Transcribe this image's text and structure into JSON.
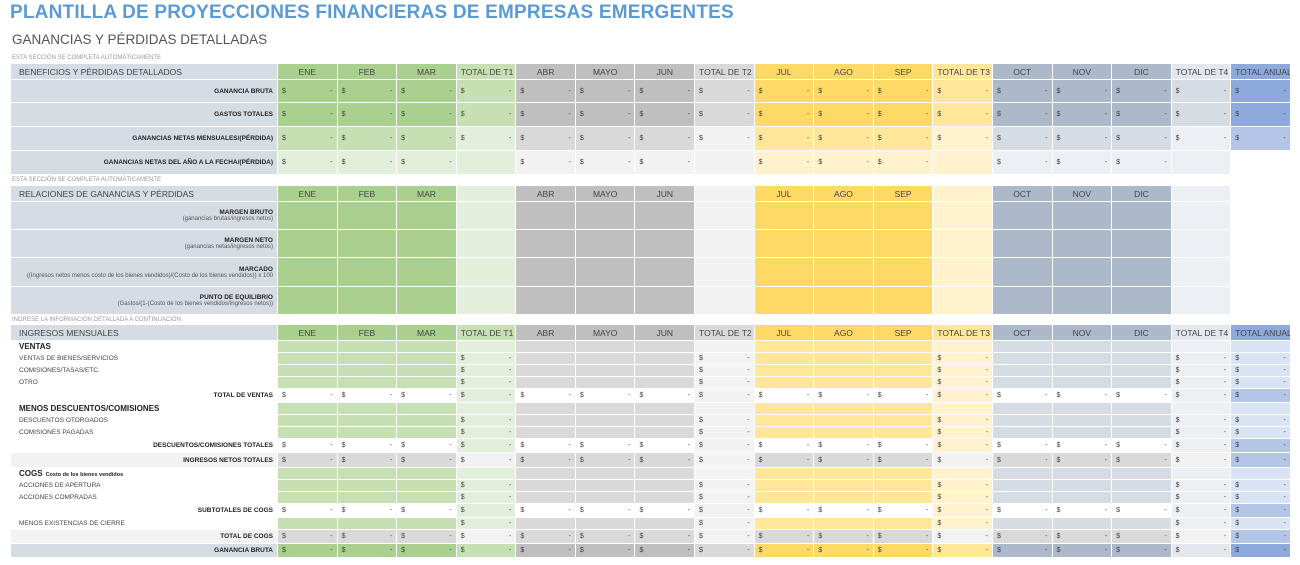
{
  "title": "PLANTILLA DE PROYECCIONES FINANCIERAS DE EMPRESAS EMERGENTES",
  "subtitle": "GANANCIAS Y PÉRDIDAS DETALLADAS",
  "currency": "$",
  "zero": "-",
  "columns": [
    "ENE",
    "FEB",
    "MAR",
    "TOTAL DE T1",
    "ABR",
    "MAYO",
    "JUN",
    "TOTAL DE T2",
    "JUL",
    "AGO",
    "SEP",
    "TOTAL DE T3",
    "OCT",
    "NOV",
    "DIC",
    "TOTAL DE T4",
    "TOTAL ANUAL"
  ],
  "colors": {
    "q": [
      {
        "dark": "#a9d08e",
        "mid": "#c6e0b4",
        "light": "#e2efda",
        "th": "#c6e0b4"
      },
      {
        "dark": "#bfbfbf",
        "mid": "#d9d9d9",
        "light": "#f2f2f2",
        "th": "#d9d9d9"
      },
      {
        "dark": "#ffd966",
        "mid": "#ffe699",
        "light": "#fff2cc",
        "th": "#ffe699"
      },
      {
        "dark": "#acb9ca",
        "mid": "#d6dce4",
        "light": "#eceff4",
        "th": "#e4e8ee"
      }
    ],
    "annual": {
      "dark": "#8ea9db",
      "mid": "#b4c6e7",
      "light": "#dae3f3"
    }
  },
  "sections": [
    {
      "note": "ESTA SECCIÓN SE COMPLETA AUTOMÁTICAMENTE",
      "header": "BENEFICIOS Y PÉRDIDAS DETALLADOS",
      "annual": true,
      "rows": [
        {
          "label": "GANANCIA BRUTA",
          "type": "s1a"
        },
        {
          "label": "GASTOS TOTALES",
          "type": "s1a"
        },
        {
          "label": "GANANCIAS NETAS MENSUALES/(PÉRDIDA)",
          "type": "s1b"
        },
        {
          "label": "GANANCIAS NETAS DEL AÑO A LA FECHA/(PÉRDIDA)",
          "type": "s1c"
        }
      ]
    },
    {
      "note": "ESTA SECCIÓN SE COMPLETA AUTOMÁTICAMENTE",
      "header": "RELACIONES DE GANANCIAS Y PÉRDIDAS",
      "annual": false,
      "rows": [
        {
          "label": "MARGEN BRUTO",
          "sub": "(ganancias brutas/ingresos netos)",
          "type": "ratio"
        },
        {
          "label": "MARGEN NETO",
          "sub": "(ganancias netas/ingresos netos)",
          "type": "ratio"
        },
        {
          "label": "MARCADO",
          "sub": "((Ingresos netos menos costo de los bienes vendidos)/(Costo de los bienes vendidos)) x 100",
          "type": "ratio"
        },
        {
          "label": "PUNTO DE EQUILIBRIO",
          "sub": "(Gastos/(1-(Costo de los bienes vendidos/Ingresos netos))",
          "type": "ratio"
        }
      ]
    },
    {
      "note": "INGRESE LA INFORMACIÓN DETALLADA A CONTINUACIÓN",
      "header": "INGRESOS MENSUALES",
      "annual": true,
      "rows": [
        {
          "label": "VENTAS",
          "type": "sec"
        },
        {
          "label": "VENTAS DE BIENES/SERVICIOS",
          "type": "input"
        },
        {
          "label": "COMISIONES/TASAS/ETC.",
          "type": "input"
        },
        {
          "label": "OTRO",
          "type": "input"
        },
        {
          "label": "TOTAL DE VENTAS",
          "type": "total"
        },
        {
          "label": "MENOS DESCUENTOS/COMISIONES",
          "type": "sec"
        },
        {
          "label": "DESCUENTOS OTORGADOS",
          "type": "input"
        },
        {
          "label": "COMISIONES PAGADAS",
          "type": "input"
        },
        {
          "label": "DESCUENTOS/COMISIONES TOTALES",
          "type": "total"
        },
        {
          "label": "INGRESOS NETOS TOTALES",
          "type": "gray"
        },
        {
          "label": "COGS",
          "sub": "Costo de los bienes vendidos",
          "type": "sec"
        },
        {
          "label": "ACCIONES DE APERTURA",
          "type": "input"
        },
        {
          "label": "ACCIONES COMPRADAS",
          "type": "input"
        },
        {
          "label": "SUBTOTALES DE COGS",
          "type": "total"
        },
        {
          "label": "MENOS EXISTENCIAS DE CIERRE",
          "type": "input"
        },
        {
          "label": "TOTAL DE COGS",
          "type": "gray"
        },
        {
          "label": "GANANCIA BRUTA",
          "type": "gross"
        }
      ]
    }
  ]
}
